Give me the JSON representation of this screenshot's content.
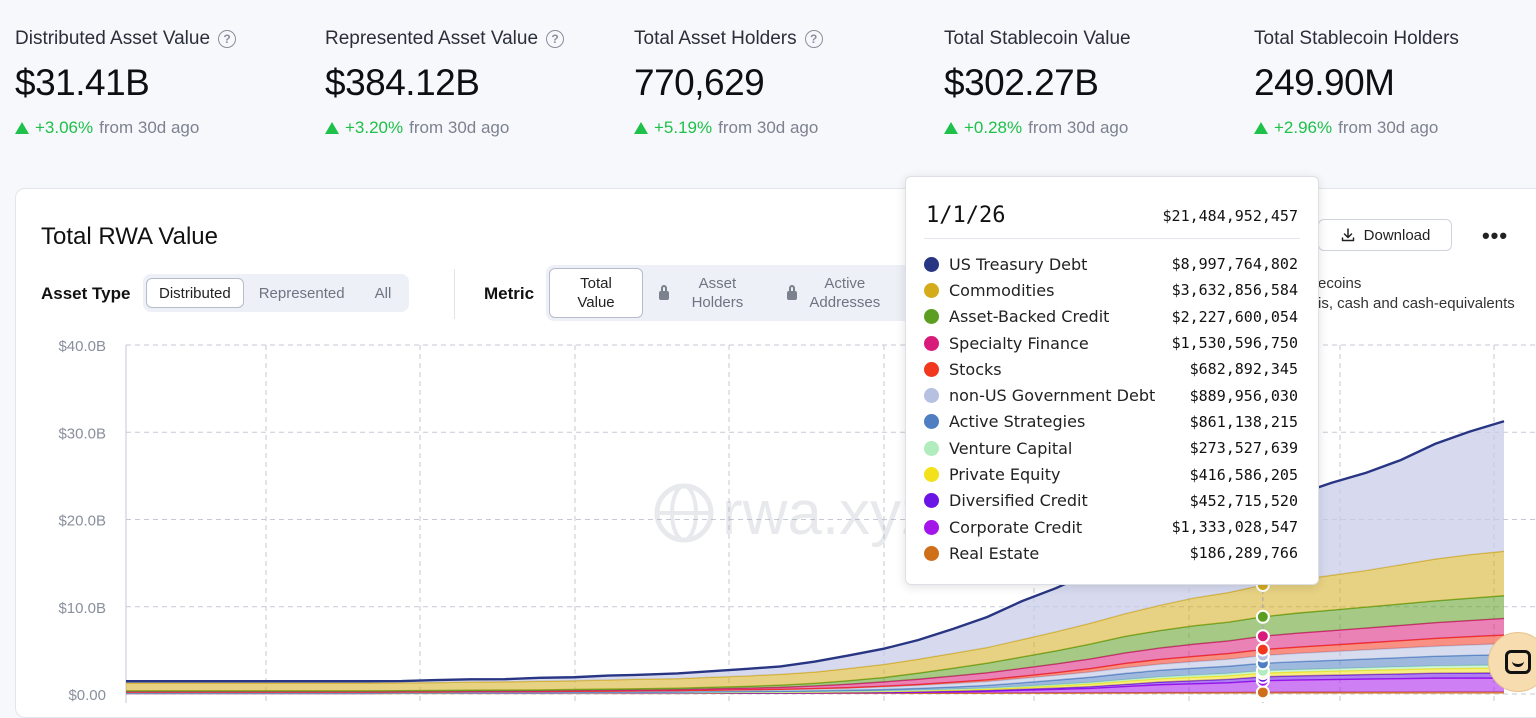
{
  "stats": [
    {
      "label": "Distributed Asset Value",
      "help": true,
      "value": "$31.41B",
      "change": "+3.06%",
      "suffix": "from 30d ago"
    },
    {
      "label": "Represented Asset Value",
      "help": true,
      "value": "$384.12B",
      "change": "+3.20%",
      "suffix": "from 30d ago"
    },
    {
      "label": "Total Asset Holders",
      "help": true,
      "value": "770,629",
      "change": "+5.19%",
      "suffix": "from 30d ago"
    },
    {
      "label": "Total Stablecoin Value",
      "help": false,
      "value": "$302.27B",
      "change": "+0.28%",
      "suffix": "from 30d ago"
    },
    {
      "label": "Total Stablecoin Holders",
      "help": false,
      "value": "249.90M",
      "change": "+2.96%",
      "suffix": "from 30d ago"
    }
  ],
  "card": {
    "title": "Total RWA Value",
    "download_label": "Download",
    "more_label": "•••",
    "asset_type_label": "Asset Type",
    "asset_type_options": [
      "Distributed",
      "Represented",
      "All"
    ],
    "asset_type_selected": "Distributed",
    "metric_label": "Metric",
    "metric_options": [
      "Total Value",
      "Asset Holders",
      "Active Addresses"
    ],
    "metric_selected": "Total Value",
    "legend_partial_1": "ecoins",
    "legend_partial_2": "is, cash and cash-equivalents",
    "watermark": "rwa.xyz"
  },
  "tooltip": {
    "date": "1/1/26",
    "total": "$21,484,952,457",
    "rows": [
      {
        "name": "US Treasury Debt",
        "value": "$8,997,764,802",
        "color": "#283583"
      },
      {
        "name": "Commodities",
        "value": "$3,632,856,584",
        "color": "#d4ac1b"
      },
      {
        "name": "Asset-Backed Credit",
        "value": "$2,227,600,054",
        "color": "#5c9e22"
      },
      {
        "name": "Specialty Finance",
        "value": "$1,530,596,750",
        "color": "#d81b7a"
      },
      {
        "name": "Stocks",
        "value": "$682,892,345",
        "color": "#f2371f"
      },
      {
        "name": "non-US Government Debt",
        "value": "$889,956,030",
        "color": "#b6c0e0"
      },
      {
        "name": "Active Strategies",
        "value": "$861,138,215",
        "color": "#4f7ec2"
      },
      {
        "name": "Venture Capital",
        "value": "$273,527,639",
        "color": "#b0ecbd"
      },
      {
        "name": "Private Equity",
        "value": "$416,586,205",
        "color": "#f3e21b"
      },
      {
        "name": "Diversified Credit",
        "value": "$452,715,520",
        "color": "#6b14e6"
      },
      {
        "name": "Corporate Credit",
        "value": "$1,333,028,547",
        "color": "#a415ea"
      },
      {
        "name": "Real Estate",
        "value": "$186,289,766",
        "color": "#d06f1a"
      }
    ]
  },
  "chart_data": {
    "type": "area",
    "title": "Total RWA Value",
    "ylabel": "",
    "xlabel": "",
    "ylim": [
      0,
      40
    ],
    "y_unit": "B",
    "y_ticks": [
      "$0.00",
      "$10.0B",
      "$20.0B",
      "$30.0B",
      "$40.0B"
    ],
    "grid": true,
    "stacked": true,
    "x_points": 41,
    "highlight_index": 33,
    "series": [
      {
        "name": "Real Estate",
        "color": "#d06f1a",
        "values": [
          0.05,
          0.05,
          0.05,
          0.05,
          0.05,
          0.05,
          0.05,
          0.05,
          0.06,
          0.06,
          0.06,
          0.06,
          0.06,
          0.07,
          0.07,
          0.07,
          0.07,
          0.08,
          0.08,
          0.08,
          0.08,
          0.09,
          0.09,
          0.1,
          0.1,
          0.11,
          0.12,
          0.13,
          0.14,
          0.15,
          0.16,
          0.17,
          0.18,
          0.19,
          0.2,
          0.2,
          0.21,
          0.21,
          0.22,
          0.22,
          0.22
        ]
      },
      {
        "name": "Corporate Credit",
        "color": "#a415ea",
        "values": [
          0.02,
          0.02,
          0.02,
          0.02,
          0.02,
          0.02,
          0.02,
          0.02,
          0.02,
          0.02,
          0.03,
          0.03,
          0.03,
          0.03,
          0.03,
          0.03,
          0.03,
          0.04,
          0.04,
          0.04,
          0.05,
          0.06,
          0.07,
          0.1,
          0.15,
          0.2,
          0.3,
          0.4,
          0.5,
          0.7,
          0.9,
          1.0,
          1.1,
          1.33,
          1.4,
          1.45,
          1.5,
          1.55,
          1.6,
          1.6,
          1.6
        ]
      },
      {
        "name": "Diversified Credit",
        "color": "#6b14e6",
        "values": [
          0.01,
          0.01,
          0.01,
          0.01,
          0.01,
          0.01,
          0.01,
          0.01,
          0.01,
          0.01,
          0.01,
          0.01,
          0.01,
          0.01,
          0.02,
          0.02,
          0.02,
          0.02,
          0.03,
          0.03,
          0.03,
          0.04,
          0.05,
          0.06,
          0.08,
          0.1,
          0.12,
          0.15,
          0.2,
          0.25,
          0.3,
          0.35,
          0.4,
          0.45,
          0.48,
          0.5,
          0.52,
          0.54,
          0.56,
          0.58,
          0.6
        ]
      },
      {
        "name": "Private Equity",
        "color": "#f3e21b",
        "values": [
          0.01,
          0.01,
          0.01,
          0.01,
          0.01,
          0.01,
          0.01,
          0.01,
          0.01,
          0.01,
          0.02,
          0.02,
          0.02,
          0.02,
          0.02,
          0.03,
          0.03,
          0.03,
          0.04,
          0.04,
          0.05,
          0.06,
          0.08,
          0.1,
          0.12,
          0.15,
          0.2,
          0.25,
          0.3,
          0.35,
          0.38,
          0.4,
          0.41,
          0.42,
          0.44,
          0.46,
          0.48,
          0.5,
          0.52,
          0.54,
          0.55
        ]
      },
      {
        "name": "Venture Capital",
        "color": "#b0ecbd",
        "values": [
          0.01,
          0.01,
          0.01,
          0.01,
          0.01,
          0.01,
          0.01,
          0.01,
          0.01,
          0.01,
          0.01,
          0.01,
          0.01,
          0.02,
          0.02,
          0.02,
          0.02,
          0.03,
          0.03,
          0.04,
          0.05,
          0.06,
          0.07,
          0.08,
          0.1,
          0.12,
          0.14,
          0.16,
          0.18,
          0.2,
          0.22,
          0.24,
          0.26,
          0.27,
          0.28,
          0.29,
          0.3,
          0.31,
          0.32,
          0.33,
          0.34
        ]
      },
      {
        "name": "Active Strategies",
        "color": "#4f7ec2",
        "values": [
          0.01,
          0.01,
          0.01,
          0.01,
          0.01,
          0.01,
          0.01,
          0.01,
          0.01,
          0.02,
          0.02,
          0.02,
          0.02,
          0.03,
          0.03,
          0.04,
          0.05,
          0.06,
          0.07,
          0.08,
          0.1,
          0.12,
          0.15,
          0.2,
          0.25,
          0.3,
          0.4,
          0.5,
          0.6,
          0.7,
          0.75,
          0.8,
          0.83,
          0.86,
          0.9,
          0.95,
          1.0,
          1.05,
          1.1,
          1.15,
          1.2
        ]
      },
      {
        "name": "non-US Government Debt",
        "color": "#b6c0e0",
        "values": [
          0.1,
          0.1,
          0.1,
          0.1,
          0.1,
          0.1,
          0.1,
          0.1,
          0.1,
          0.1,
          0.11,
          0.11,
          0.12,
          0.12,
          0.13,
          0.14,
          0.15,
          0.16,
          0.18,
          0.2,
          0.22,
          0.25,
          0.3,
          0.35,
          0.4,
          0.45,
          0.5,
          0.55,
          0.6,
          0.65,
          0.7,
          0.75,
          0.8,
          0.89,
          0.95,
          1.0,
          1.05,
          1.1,
          1.15,
          1.2,
          1.25
        ]
      },
      {
        "name": "Stocks",
        "color": "#f2371f",
        "values": [
          0.0,
          0.0,
          0.0,
          0.0,
          0.0,
          0.0,
          0.0,
          0.0,
          0.0,
          0.0,
          0.0,
          0.0,
          0.0,
          0.01,
          0.01,
          0.01,
          0.01,
          0.02,
          0.02,
          0.03,
          0.04,
          0.05,
          0.08,
          0.1,
          0.15,
          0.2,
          0.25,
          0.3,
          0.4,
          0.5,
          0.55,
          0.6,
          0.65,
          0.68,
          0.72,
          0.76,
          0.8,
          0.85,
          0.9,
          0.95,
          1.0
        ]
      },
      {
        "name": "Specialty Finance",
        "color": "#d81b7a",
        "values": [
          0.05,
          0.05,
          0.05,
          0.05,
          0.05,
          0.05,
          0.05,
          0.05,
          0.06,
          0.06,
          0.06,
          0.07,
          0.07,
          0.08,
          0.09,
          0.1,
          0.12,
          0.15,
          0.18,
          0.22,
          0.3,
          0.4,
          0.5,
          0.6,
          0.7,
          0.8,
          0.9,
          1.0,
          1.1,
          1.2,
          1.3,
          1.4,
          1.45,
          1.53,
          1.6,
          1.65,
          1.7,
          1.75,
          1.8,
          1.85,
          1.9
        ]
      },
      {
        "name": "Asset-Backed Credit",
        "color": "#5c9e22",
        "values": [
          0.1,
          0.1,
          0.1,
          0.1,
          0.1,
          0.1,
          0.1,
          0.1,
          0.1,
          0.11,
          0.11,
          0.12,
          0.12,
          0.13,
          0.14,
          0.15,
          0.16,
          0.18,
          0.2,
          0.25,
          0.3,
          0.4,
          0.5,
          0.7,
          0.9,
          1.1,
          1.3,
          1.5,
          1.7,
          1.9,
          2.0,
          2.1,
          2.15,
          2.23,
          2.3,
          2.35,
          2.4,
          2.45,
          2.5,
          2.55,
          2.6
        ]
      },
      {
        "name": "Commodities",
        "color": "#d4ac1b",
        "values": [
          0.9,
          0.9,
          0.9,
          0.9,
          0.9,
          0.9,
          0.9,
          0.9,
          0.9,
          0.9,
          0.95,
          0.95,
          1.0,
          1.0,
          1.05,
          1.1,
          1.1,
          1.15,
          1.2,
          1.25,
          1.3,
          1.4,
          1.5,
          1.6,
          1.7,
          1.8,
          2.0,
          2.2,
          2.4,
          2.6,
          2.9,
          3.2,
          3.4,
          3.63,
          3.8,
          4.0,
          4.2,
          4.5,
          4.8,
          5.0,
          5.1
        ]
      },
      {
        "name": "US Treasury Debt",
        "color": "#283583",
        "values": [
          0.2,
          0.2,
          0.2,
          0.2,
          0.2,
          0.2,
          0.2,
          0.2,
          0.2,
          0.3,
          0.3,
          0.3,
          0.4,
          0.4,
          0.5,
          0.5,
          0.6,
          0.7,
          0.8,
          0.9,
          1.2,
          1.5,
          1.8,
          2.2,
          2.8,
          3.5,
          4.4,
          5.0,
          5.8,
          6.3,
          6.8,
          7.0,
          7.6,
          9.0,
          9.8,
          10.6,
          11.2,
          12.0,
          13.2,
          14.1,
          14.9
        ]
      }
    ]
  }
}
